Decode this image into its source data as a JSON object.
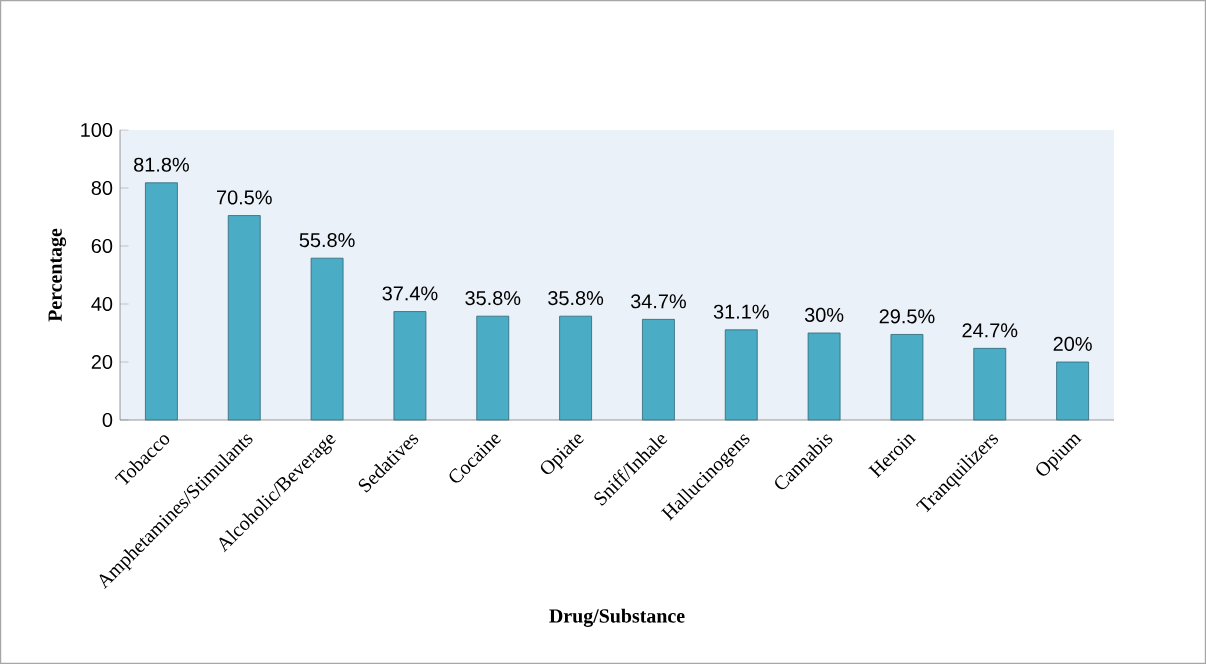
{
  "chart_data": {
    "type": "bar",
    "xlabel": "Drug/Substance",
    "ylabel": "Percentage",
    "categories": [
      "Tobacco",
      "Amphetamines/Stimulants",
      "Alcoholic/Beverage",
      "Sedatives",
      "Cocaine",
      "Opiate",
      "Sniff/Inhale",
      "Hallucinogens",
      "Cannabis",
      "Heroin",
      "Tranquilizers",
      "Opium"
    ],
    "values": [
      81.8,
      70.5,
      55.8,
      37.4,
      35.8,
      35.8,
      34.7,
      31.1,
      30,
      29.5,
      24.7,
      20
    ],
    "value_labels": [
      "81.8%",
      "70.5%",
      "55.8%",
      "37.4%",
      "35.8%",
      "35.8%",
      "34.7%",
      "31.1%",
      "30%",
      "29.5%",
      "24.7%",
      "20%"
    ],
    "color": "#4bacc6",
    "ylim": [
      0,
      100
    ],
    "yticks": [
      0,
      20,
      40,
      60,
      80,
      100
    ],
    "grid": false
  }
}
